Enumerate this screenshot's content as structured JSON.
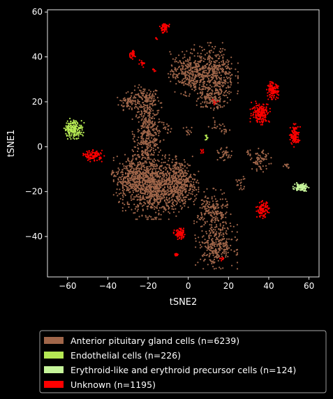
{
  "chart_data": {
    "type": "scatter",
    "title": "",
    "xlabel": "tSNE2",
    "ylabel": "tSNE1",
    "xlim": [
      -70,
      65
    ],
    "ylim": [
      -58,
      61
    ],
    "xticks": [
      -60,
      -40,
      -20,
      0,
      20,
      40,
      60
    ],
    "yticks": [
      -40,
      -20,
      0,
      20,
      40,
      60
    ],
    "grid": false,
    "legend_position": "bottom",
    "series": [
      {
        "name": "Anterior pituitary gland cells (n=6239)",
        "color": "#a0664a",
        "clusters": [
          {
            "cx": -22,
            "cy": 21,
            "rx": 7,
            "ry": 5,
            "n": 140
          },
          {
            "cx": -30,
            "cy": 20,
            "rx": 4,
            "ry": 3,
            "n": 60
          },
          {
            "cx": -20,
            "cy": 5,
            "rx": 6,
            "ry": 13,
            "n": 400
          },
          {
            "cx": -17,
            "cy": -18,
            "rx": 12,
            "ry": 11,
            "n": 900
          },
          {
            "cx": -28,
            "cy": -14,
            "rx": 7,
            "ry": 9,
            "n": 300
          },
          {
            "cx": -4,
            "cy": -16,
            "rx": 7,
            "ry": 9,
            "n": 350
          },
          {
            "cx": 0,
            "cy": 33,
            "rx": 8,
            "ry": 8,
            "n": 300
          },
          {
            "cx": 13,
            "cy": 32,
            "rx": 9,
            "ry": 11,
            "n": 450
          },
          {
            "cx": 12,
            "cy": 21,
            "rx": 6,
            "ry": 4,
            "n": 100
          },
          {
            "cx": 14,
            "cy": -44,
            "rx": 8,
            "ry": 8,
            "n": 300
          },
          {
            "cx": 12,
            "cy": -29,
            "rx": 7,
            "ry": 8,
            "n": 200
          },
          {
            "cx": 36,
            "cy": -6,
            "rx": 4,
            "ry": 4,
            "n": 70
          },
          {
            "cx": 18,
            "cy": -4,
            "rx": 3,
            "ry": 3,
            "n": 35
          },
          {
            "cx": 26,
            "cy": -16,
            "rx": 2.5,
            "ry": 2.5,
            "n": 20
          },
          {
            "cx": 30,
            "cy": -3,
            "rx": 1.5,
            "ry": 1.5,
            "n": 10
          },
          {
            "cx": 49,
            "cy": -8,
            "rx": 1.8,
            "ry": 1.2,
            "n": 12
          },
          {
            "cx": -37,
            "cy": -12,
            "rx": 1.5,
            "ry": 1.5,
            "n": 10
          },
          {
            "cx": 14,
            "cy": 10,
            "rx": 3,
            "ry": 3,
            "n": 15
          },
          {
            "cx": -10,
            "cy": 8,
            "rx": 2,
            "ry": 2,
            "n": 12
          },
          {
            "cx": 18,
            "cy": 7,
            "rx": 2,
            "ry": 2,
            "n": 10
          },
          {
            "cx": 0,
            "cy": 7,
            "rx": 2,
            "ry": 2,
            "n": 12
          }
        ]
      },
      {
        "name": "Endothelial cells (n=226)",
        "color": "#b5e853",
        "clusters": [
          {
            "cx": -57,
            "cy": 8,
            "rx": 4,
            "ry": 3.5,
            "n": 200
          },
          {
            "cx": 9,
            "cy": 4,
            "rx": 0.6,
            "ry": 1.5,
            "n": 10
          }
        ]
      },
      {
        "name": "Erythroid-like and erythroid precursor cells (n=124)",
        "color": "#c6f59a",
        "clusters": [
          {
            "cx": 56,
            "cy": -18,
            "rx": 3,
            "ry": 1.5,
            "n": 100
          }
        ]
      },
      {
        "name": "Unknown (n=1195)",
        "color": "#ff0000",
        "clusters": [
          {
            "cx": -12,
            "cy": 53,
            "rx": 2,
            "ry": 2,
            "n": 60
          },
          {
            "cx": -28,
            "cy": 41,
            "rx": 1.5,
            "ry": 1.5,
            "n": 35
          },
          {
            "cx": -23,
            "cy": 37,
            "rx": 1.5,
            "ry": 1.2,
            "n": 15
          },
          {
            "cx": -17,
            "cy": 34,
            "rx": 1,
            "ry": 1,
            "n": 6
          },
          {
            "cx": -16,
            "cy": 48,
            "rx": 0.5,
            "ry": 1,
            "n": 4
          },
          {
            "cx": 42,
            "cy": 25,
            "rx": 2.5,
            "ry": 3,
            "n": 120
          },
          {
            "cx": 36,
            "cy": 15,
            "rx": 4,
            "ry": 4,
            "n": 180
          },
          {
            "cx": 53,
            "cy": 5,
            "rx": 2,
            "ry": 4,
            "n": 120
          },
          {
            "cx": -47,
            "cy": -4,
            "rx": 4,
            "ry": 2,
            "n": 100
          },
          {
            "cx": 37,
            "cy": -28,
            "rx": 2.5,
            "ry": 3,
            "n": 100
          },
          {
            "cx": -4,
            "cy": -39,
            "rx": 2.5,
            "ry": 2,
            "n": 80
          },
          {
            "cx": -6,
            "cy": -48,
            "rx": 1,
            "ry": 1,
            "n": 12
          },
          {
            "cx": 17,
            "cy": -50,
            "rx": 1,
            "ry": 1,
            "n": 8
          },
          {
            "cx": 7,
            "cy": -2,
            "rx": 1,
            "ry": 1,
            "n": 8
          },
          {
            "cx": 13,
            "cy": 20,
            "rx": 1.5,
            "ry": 1,
            "n": 6
          }
        ]
      }
    ]
  }
}
